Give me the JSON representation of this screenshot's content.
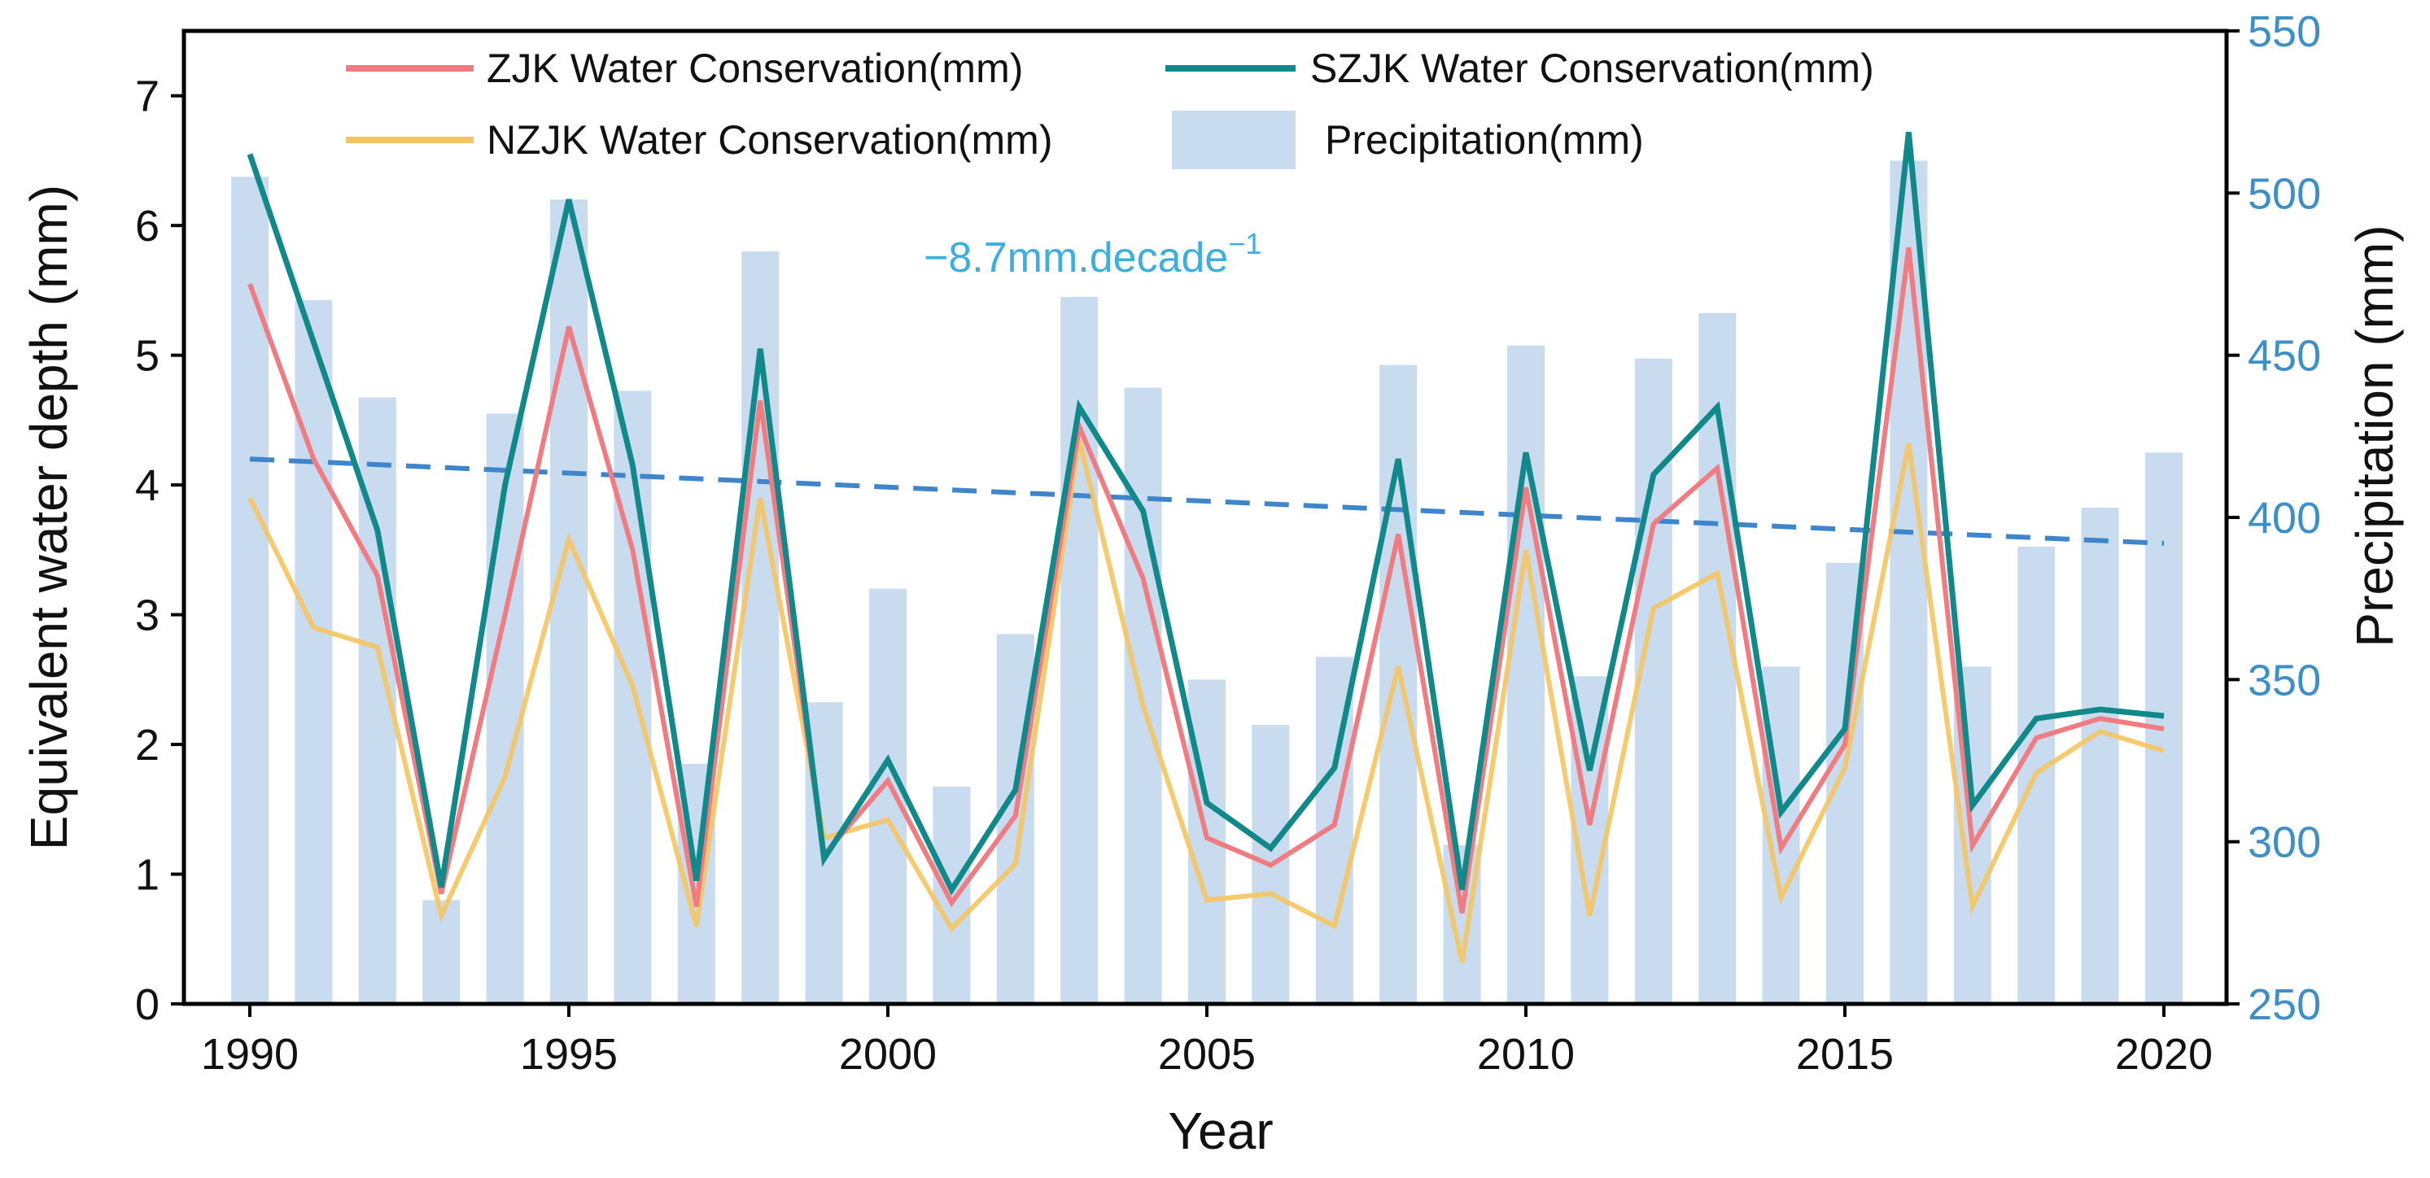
{
  "chart_data": {
    "type": "bar+line",
    "xlabel": "Year",
    "ylabel_left": "Equivalent water depth (mm)",
    "ylabel_right": "Precipitation (mm)",
    "ylim_left": [
      0,
      7.5
    ],
    "ylim_right": [
      250,
      550
    ],
    "yticks_left": [
      "0",
      "1",
      "2",
      "3",
      "4",
      "5",
      "6",
      "7"
    ],
    "yticks_right": [
      "250",
      "300",
      "350",
      "400",
      "450",
      "500",
      "550"
    ],
    "xticks": [
      "1990",
      "1995",
      "2000",
      "2005",
      "2010",
      "2015",
      "2020"
    ],
    "years": [
      1990,
      1991,
      1992,
      1993,
      1994,
      1995,
      1996,
      1997,
      1998,
      1999,
      2000,
      2001,
      2002,
      2003,
      2004,
      2005,
      2006,
      2007,
      2008,
      2009,
      2010,
      2011,
      2012,
      2013,
      2014,
      2015,
      2016,
      2017,
      2018,
      2019,
      2020
    ],
    "precipitation": {
      "name": "Precipitation(mm)",
      "color": "#c9dbee",
      "values": [
        505,
        467,
        437,
        282,
        432,
        498,
        439,
        324,
        482,
        343,
        378,
        317,
        364,
        468,
        440,
        350,
        336,
        357,
        447,
        299,
        453,
        351,
        449,
        463,
        354,
        386,
        510,
        354,
        391,
        403,
        420
      ]
    },
    "series": [
      {
        "name": "ZJK Water Conservation(mm)",
        "color": "#f07c82",
        "values": [
          5.55,
          4.2,
          3.3,
          0.85,
          3.0,
          5.22,
          3.5,
          0.75,
          4.65,
          1.15,
          1.72,
          0.78,
          1.45,
          4.45,
          3.28,
          1.28,
          1.07,
          1.38,
          3.62,
          0.7,
          3.98,
          1.38,
          3.7,
          4.13,
          1.2,
          2.0,
          5.83,
          1.22,
          2.05,
          2.2,
          2.12
        ]
      },
      {
        "name": "SZJK Water Conservation(mm)",
        "color": "#11898b",
        "values": [
          6.55,
          5.1,
          3.65,
          0.9,
          4.0,
          6.2,
          4.15,
          0.95,
          5.05,
          1.12,
          1.88,
          0.88,
          1.65,
          4.6,
          3.8,
          1.55,
          1.2,
          1.82,
          4.2,
          0.88,
          4.25,
          1.8,
          4.08,
          4.6,
          1.48,
          2.12,
          6.72,
          1.53,
          2.2,
          2.27,
          2.22
        ]
      },
      {
        "name": "NZJK Water Conservation(mm)",
        "color": "#f5c561",
        "values": [
          3.9,
          2.9,
          2.75,
          0.68,
          1.75,
          3.58,
          2.45,
          0.6,
          3.9,
          1.28,
          1.42,
          0.58,
          1.08,
          4.35,
          2.3,
          0.8,
          0.85,
          0.6,
          2.6,
          0.32,
          3.5,
          0.68,
          3.05,
          3.32,
          0.82,
          1.82,
          4.32,
          0.75,
          1.78,
          2.1,
          1.95
        ]
      }
    ],
    "trend": {
      "label": "−8.7mm.decade",
      "label_exp": "−1",
      "color": "#3e85cc",
      "start": 418,
      "end": 392
    }
  }
}
